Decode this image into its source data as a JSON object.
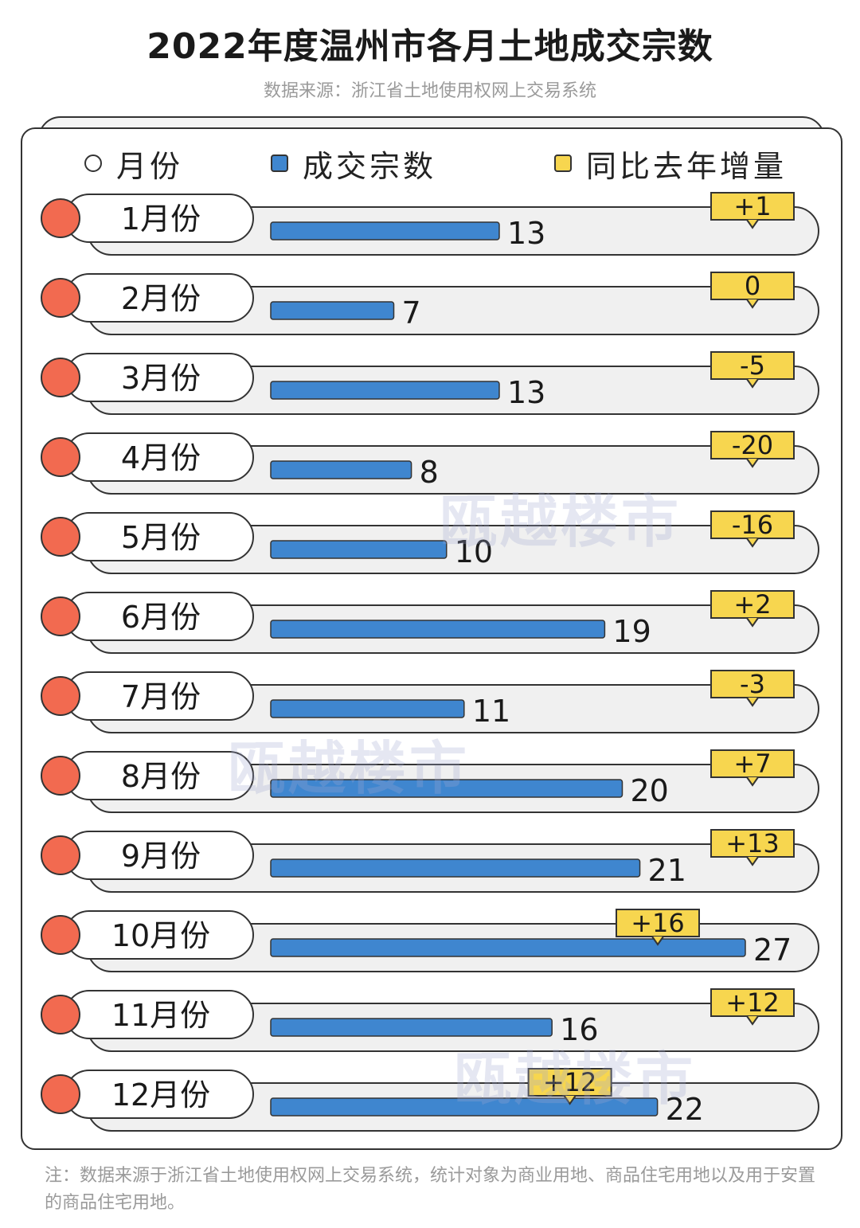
{
  "header": {
    "title": "2022年度温州市各月土地成交宗数",
    "subtitle": "数据来源：浙江省土地使用权网上交易系统"
  },
  "legend": [
    {
      "label": "月份",
      "marker": "circle-outline"
    },
    {
      "label": "成交宗数",
      "marker": "square",
      "color": "#3f86cf"
    },
    {
      "label": "同比去年增量",
      "marker": "square",
      "color": "#f7d64f"
    }
  ],
  "watermark": "瓯越楼市",
  "note": "注：数据来源于浙江省土地使用权网上交易系统，统计对象为商业用地、商品住宅用地以及用于安置的商品住宅用地。",
  "colors": {
    "bar": "#3f86cf",
    "tag": "#f7d64f",
    "dot": "#f26a50",
    "outline": "#333333",
    "track": "#f0f0f0"
  },
  "chart_data": {
    "type": "bar",
    "orientation": "horizontal",
    "title": "2022年度温州市各月土地成交宗数",
    "categories": [
      "1月份",
      "2月份",
      "3月份",
      "4月份",
      "5月份",
      "6月份",
      "7月份",
      "8月份",
      "9月份",
      "10月份",
      "11月份",
      "12月份"
    ],
    "series": [
      {
        "name": "成交宗数",
        "values": [
          13,
          7,
          13,
          8,
          10,
          19,
          11,
          20,
          21,
          27,
          16,
          22
        ]
      },
      {
        "name": "同比去年增量",
        "values": [
          "+1",
          "0",
          "-5",
          "-20",
          "-16",
          "+2",
          "-3",
          "+7",
          "+13",
          "+16",
          "+12",
          "+12"
        ]
      }
    ],
    "grid": false
  }
}
